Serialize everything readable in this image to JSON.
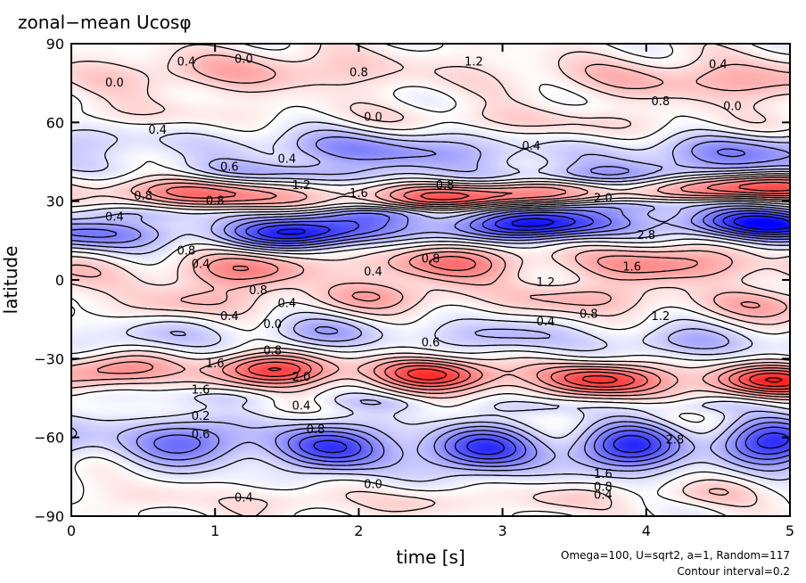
{
  "chart_data": {
    "type": "heatmap",
    "title": "zonal−mean Ucosφ",
    "xlabel": "time [s]",
    "ylabel": "latitude",
    "xlim": [
      0,
      5
    ],
    "ylim": [
      -90,
      90
    ],
    "x_ticks": [
      "0",
      "1",
      "2",
      "3",
      "4",
      "5"
    ],
    "y_ticks": [
      "−90",
      "−60",
      "−30",
      "0",
      "30",
      "60",
      "90"
    ],
    "x_tick_values": [
      0,
      1,
      2,
      3,
      4,
      5
    ],
    "y_tick_values": [
      -90,
      -60,
      -30,
      0,
      30,
      60,
      90
    ],
    "colormap": {
      "negative": "#0000ff",
      "zero": "#ffffff",
      "positive": "#ff0000"
    },
    "contour_interval": 0.2,
    "value_range": [
      -3.2,
      3.2
    ],
    "bands": [
      {
        "lat": 78,
        "amp": 1.0,
        "width": 8
      },
      {
        "lat": 62,
        "amp": 0.5,
        "width": 5
      },
      {
        "lat": 50,
        "amp": -1.4,
        "width": 7
      },
      {
        "lat": 42,
        "amp": -0.9,
        "width": 4
      },
      {
        "lat": 34,
        "amp": 2.2,
        "width": 5
      },
      {
        "lat": 27,
        "amp": -0.8,
        "width": 3
      },
      {
        "lat": 20,
        "amp": -3.0,
        "width": 6
      },
      {
        "lat": 5,
        "amp": 1.6,
        "width": 7
      },
      {
        "lat": -8,
        "amp": 1.0,
        "width": 6
      },
      {
        "lat": -22,
        "amp": -1.0,
        "width": 6
      },
      {
        "lat": -36,
        "amp": 2.6,
        "width": 6
      },
      {
        "lat": -46,
        "amp": -0.5,
        "width": 3
      },
      {
        "lat": -62,
        "amp": -2.6,
        "width": 9
      },
      {
        "lat": -82,
        "amp": 0.6,
        "width": 5
      }
    ],
    "contour_labels": [
      {
        "t": 0.8,
        "lat": 83,
        "text": "0.4"
      },
      {
        "t": 1.2,
        "lat": 84,
        "text": "0.0"
      },
      {
        "t": 0.3,
        "lat": 75,
        "text": "0.0"
      },
      {
        "t": 2.0,
        "lat": 79,
        "text": "0.8"
      },
      {
        "t": 2.8,
        "lat": 83,
        "text": "1.2"
      },
      {
        "t": 4.5,
        "lat": 82,
        "text": "0.4"
      },
      {
        "t": 4.1,
        "lat": 68,
        "text": "0.8"
      },
      {
        "t": 4.6,
        "lat": 66,
        "text": "0.0"
      },
      {
        "t": 2.1,
        "lat": 62,
        "text": "0.0"
      },
      {
        "t": 0.6,
        "lat": 57,
        "text": "0.4"
      },
      {
        "t": 1.5,
        "lat": 46,
        "text": "0.4"
      },
      {
        "t": 1.1,
        "lat": 43,
        "text": "0.6"
      },
      {
        "t": 3.2,
        "lat": 51,
        "text": "0.4"
      },
      {
        "t": 0.5,
        "lat": 32,
        "text": "0.8"
      },
      {
        "t": 1.6,
        "lat": 36,
        "text": "1.2"
      },
      {
        "t": 2.0,
        "lat": 33,
        "text": "1.6"
      },
      {
        "t": 2.6,
        "lat": 36,
        "text": "0.8"
      },
      {
        "t": 3.7,
        "lat": 31,
        "text": "2.0"
      },
      {
        "t": 1.0,
        "lat": 30,
        "text": "0.8"
      },
      {
        "t": 0.3,
        "lat": 24,
        "text": "0.4"
      },
      {
        "t": 4.0,
        "lat": 17,
        "text": "2.8"
      },
      {
        "t": 0.8,
        "lat": 11,
        "text": "0.8"
      },
      {
        "t": 0.9,
        "lat": 6,
        "text": "0.4"
      },
      {
        "t": 2.1,
        "lat": 3,
        "text": "0.4"
      },
      {
        "t": 2.5,
        "lat": 8,
        "text": "0.8"
      },
      {
        "t": 3.9,
        "lat": 5,
        "text": "1.6"
      },
      {
        "t": 3.3,
        "lat": -1,
        "text": "1.2"
      },
      {
        "t": 1.3,
        "lat": -4,
        "text": "0.8"
      },
      {
        "t": 1.5,
        "lat": -9,
        "text": "0.4"
      },
      {
        "t": 1.1,
        "lat": -14,
        "text": "0.4"
      },
      {
        "t": 1.4,
        "lat": -17,
        "text": "0.0"
      },
      {
        "t": 3.3,
        "lat": -16,
        "text": "0.4"
      },
      {
        "t": 3.6,
        "lat": -13,
        "text": "0.8"
      },
      {
        "t": 4.1,
        "lat": -14,
        "text": "1.2"
      },
      {
        "t": 2.5,
        "lat": -24,
        "text": "0.6"
      },
      {
        "t": 1.4,
        "lat": -27,
        "text": "0.8"
      },
      {
        "t": 1.0,
        "lat": -32,
        "text": "1.6"
      },
      {
        "t": 1.6,
        "lat": -37,
        "text": "2.0"
      },
      {
        "t": 0.9,
        "lat": -42,
        "text": "1.6"
      },
      {
        "t": 1.6,
        "lat": -48,
        "text": "0.4"
      },
      {
        "t": 0.9,
        "lat": -52,
        "text": "0.2"
      },
      {
        "t": 0.9,
        "lat": -59,
        "text": "0.6"
      },
      {
        "t": 1.7,
        "lat": -57,
        "text": "0.8"
      },
      {
        "t": 4.2,
        "lat": -61,
        "text": "2.8"
      },
      {
        "t": 2.1,
        "lat": -78,
        "text": "0.0"
      },
      {
        "t": 1.2,
        "lat": -83,
        "text": "0.4"
      },
      {
        "t": 3.7,
        "lat": -74,
        "text": "1.6"
      },
      {
        "t": 3.7,
        "lat": -79,
        "text": "0.8"
      },
      {
        "t": 3.7,
        "lat": -82,
        "text": "0.4"
      }
    ],
    "annotations": [
      "Omega=100, U=sqrt2, a=1, Random=117",
      "Contour interval=0.2"
    ]
  }
}
